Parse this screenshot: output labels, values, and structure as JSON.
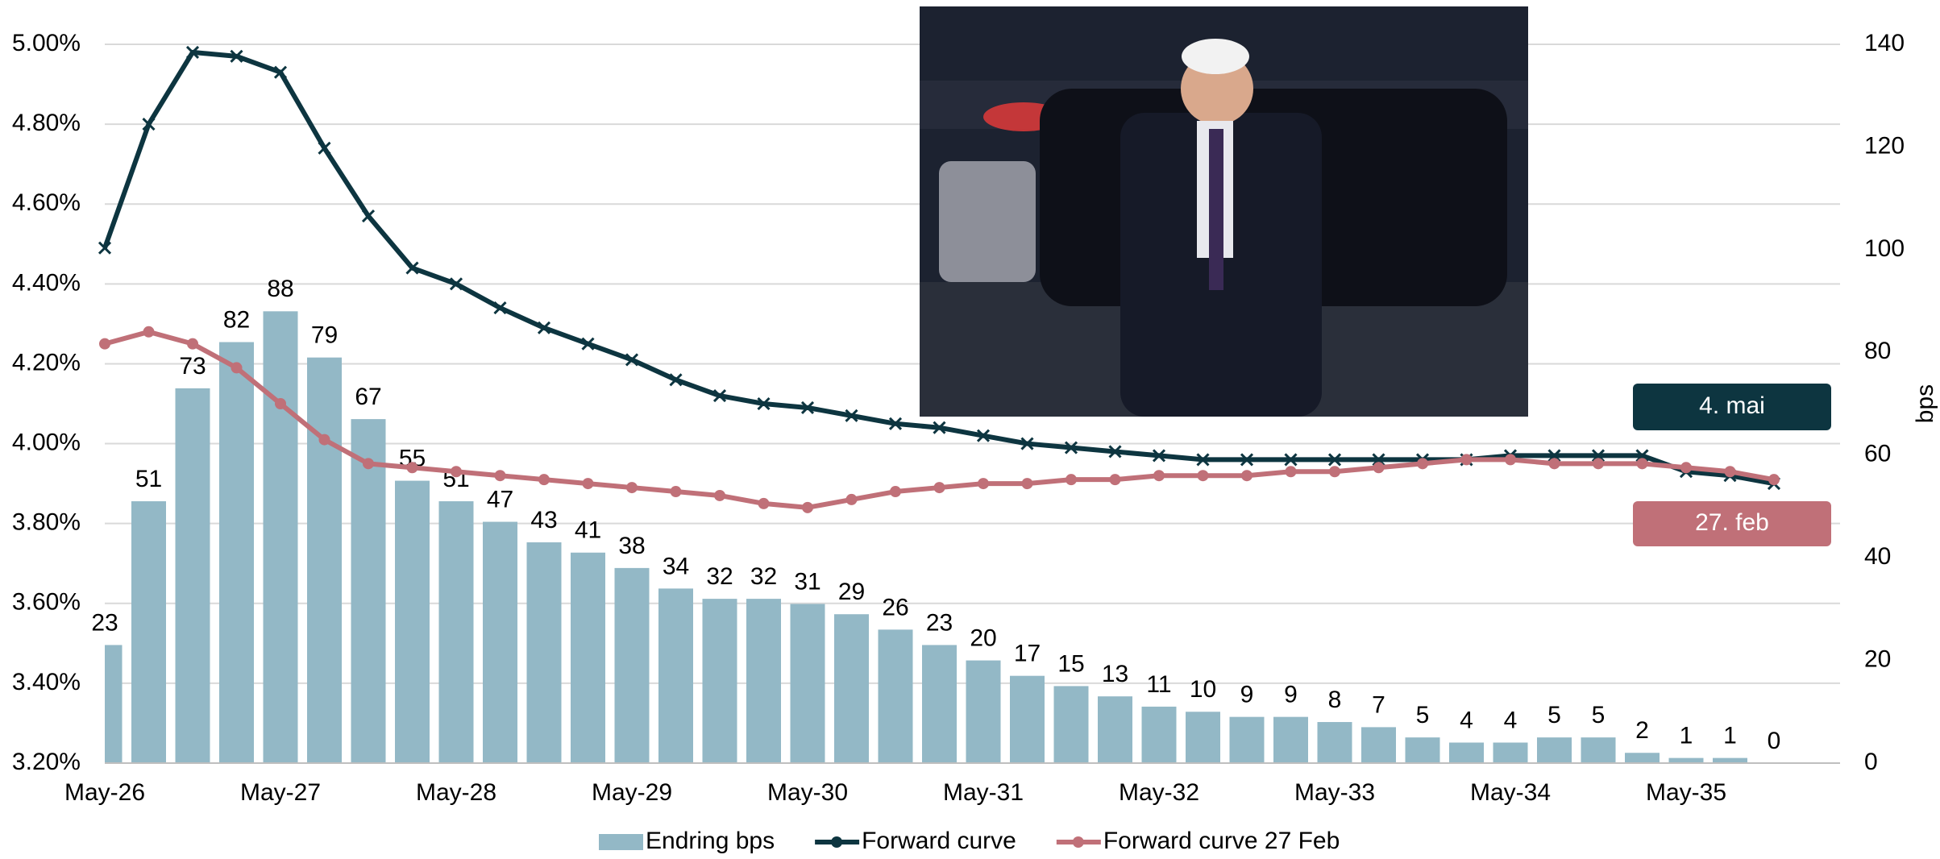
{
  "chart_data": {
    "type": "bar-line",
    "categories": [
      "May-26",
      null,
      null,
      null,
      "May-27",
      null,
      null,
      null,
      "May-28",
      null,
      null,
      null,
      "May-29",
      null,
      null,
      null,
      "May-30",
      null,
      null,
      null,
      "May-31",
      null,
      null,
      null,
      "May-32",
      null,
      null,
      null,
      "May-33",
      null,
      null,
      null,
      "May-34",
      null,
      null,
      null,
      "May-35",
      null,
      null
    ],
    "series": [
      {
        "name": "Endring bps",
        "type": "bar",
        "axis": "y2",
        "color": "#93b8c6",
        "values": [
          23,
          51,
          73,
          82,
          88,
          79,
          67,
          55,
          51,
          47,
          43,
          41,
          38,
          34,
          32,
          32,
          31,
          29,
          26,
          23,
          20,
          17,
          15,
          13,
          11,
          10,
          9,
          9,
          8,
          7,
          5,
          4,
          4,
          5,
          5,
          2,
          1,
          1,
          0
        ]
      },
      {
        "name": "Forward curve",
        "type": "line",
        "color": "#0d3540",
        "values": [
          4.49,
          4.8,
          4.98,
          4.97,
          4.93,
          4.74,
          4.57,
          4.44,
          4.4,
          4.34,
          4.29,
          4.25,
          4.21,
          4.16,
          4.12,
          4.1,
          4.09,
          4.07,
          4.05,
          4.04,
          4.02,
          4.0,
          3.99,
          3.98,
          3.97,
          3.96,
          3.96,
          3.96,
          3.96,
          3.96,
          3.96,
          3.96,
          3.97,
          3.97,
          3.97,
          3.97,
          3.93,
          3.92,
          3.9
        ]
      },
      {
        "name": "Forward curve 27 Feb",
        "type": "line",
        "color": "#c07078",
        "values": [
          4.25,
          4.28,
          4.25,
          4.19,
          4.1,
          4.01,
          3.95,
          3.94,
          3.93,
          3.92,
          3.91,
          3.9,
          3.89,
          3.88,
          3.87,
          3.85,
          3.84,
          3.86,
          3.88,
          3.89,
          3.9,
          3.9,
          3.91,
          3.91,
          3.92,
          3.92,
          3.92,
          3.93,
          3.93,
          3.94,
          3.95,
          3.96,
          3.96,
          3.95,
          3.95,
          3.95,
          3.94,
          3.93,
          3.91
        ]
      }
    ],
    "ylim": [
      3.2,
      5.0
    ],
    "yticks": [
      {
        "value": 3.2,
        "label": "3.20%"
      },
      {
        "value": 3.4,
        "label": "3.40%"
      },
      {
        "value": 3.6,
        "label": "3.60%"
      },
      {
        "value": 3.8,
        "label": "3.80%"
      },
      {
        "value": 4.0,
        "label": "4.00%"
      },
      {
        "value": 4.2,
        "label": "4.20%"
      },
      {
        "value": 4.4,
        "label": "4.40%"
      },
      {
        "value": 4.6,
        "label": "4.60%"
      },
      {
        "value": 4.8,
        "label": "4.80%"
      },
      {
        "value": 5.0,
        "label": "5.00%"
      }
    ],
    "y2lim": [
      0,
      140
    ],
    "y2ticks": [
      0,
      20,
      40,
      60,
      80,
      100,
      120,
      140
    ],
    "y2label": "bps",
    "grid": true,
    "legend": "bottom",
    "annotations": [
      {
        "text": "4. mai",
        "color": "#0d3540"
      },
      {
        "text": "27. feb",
        "color": "#c07078"
      }
    ]
  }
}
